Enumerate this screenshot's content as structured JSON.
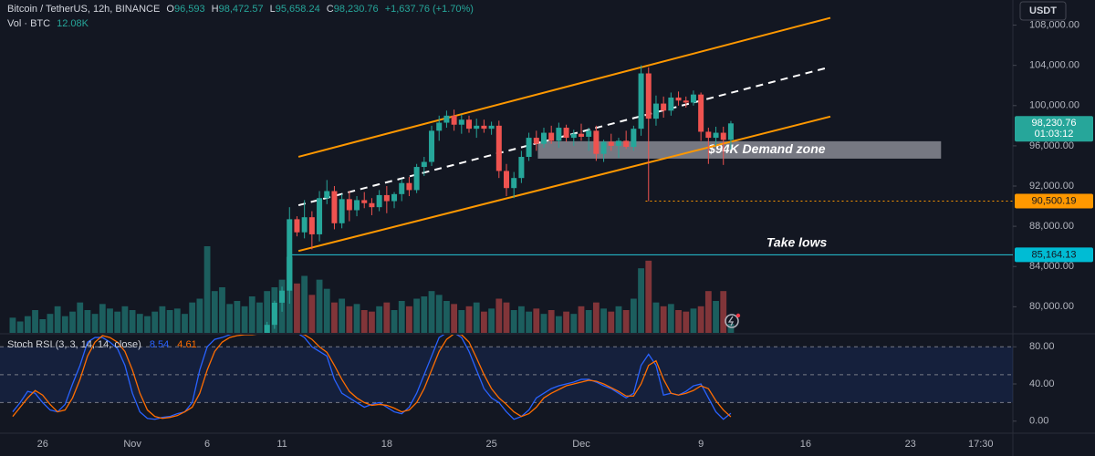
{
  "header": {
    "symbol": "Bitcoin / TetherUS, 12h, BINANCE",
    "o_label": "O",
    "open": "96,593",
    "h_label": "H",
    "high": "98,472.57",
    "l_label": "L",
    "low": "95,658.24",
    "c_label": "C",
    "close": "98,230.76",
    "change": "+1,637.76 (+1.70%)",
    "volume_label": "Vol · BTC",
    "volume_value": "12.08K",
    "currency": "USDT"
  },
  "chart_data": [
    {
      "type": "candlestick",
      "up_color": "#26a69a",
      "down_color": "#ef5350",
      "xlim": [
        -1.7,
        133.7
      ],
      "xticks": [
        {
          "value": 4,
          "label": "26"
        },
        {
          "value": 16,
          "label": "Nov"
        },
        {
          "value": 26,
          "label": "6"
        },
        {
          "value": 36,
          "label": "11"
        },
        {
          "value": 50,
          "label": "18"
        },
        {
          "value": 64,
          "label": "25"
        },
        {
          "value": 76,
          "label": "Dec"
        },
        {
          "value": 92,
          "label": "9"
        },
        {
          "value": 106,
          "label": "16"
        },
        {
          "value": 120,
          "label": "23"
        },
        {
          "value": 129.4,
          "label": "17:30"
        }
      ],
      "ylim": [
        77400,
        110500
      ],
      "yticks": [
        {
          "value": 80000,
          "label": "80,000.00"
        },
        {
          "value": 84000,
          "label": "84,000.00"
        },
        {
          "value": 88000,
          "label": "88,000.00"
        },
        {
          "value": 92000,
          "label": "92,000.00"
        },
        {
          "value": 96000,
          "label": "96,000.00"
        },
        {
          "value": 100000,
          "label": "100,000.00"
        },
        {
          "value": 104000,
          "label": "104,000.00"
        },
        {
          "value": 108000,
          "label": "108,000.00"
        }
      ],
      "open": [
        null,
        null,
        null,
        null,
        null,
        null,
        null,
        null,
        null,
        null,
        null,
        null,
        null,
        null,
        null,
        null,
        null,
        null,
        null,
        null,
        null,
        null,
        null,
        null,
        null,
        null,
        null,
        null,
        null,
        null,
        null,
        null,
        null,
        null,
        77000,
        78200,
        80400,
        81600,
        88700,
        87400,
        88900,
        87200,
        90800,
        91500,
        88300,
        90700,
        89600,
        90600,
        90300,
        89900,
        91100,
        90500,
        91200,
        92300,
        91600,
        93900,
        94400,
        97500,
        98300,
        99000,
        98100,
        98600,
        97700,
        98000,
        97700,
        98000,
        93500,
        91800,
        92800,
        94900,
        96800,
        96200,
        97300,
        96500,
        97800,
        96800,
        97200,
        96900,
        97500,
        95200,
        96400,
        96000,
        96500,
        95900,
        97700,
        103200,
        98700,
        100200,
        99500,
        100800,
        100500,
        100300,
        101100,
        97400,
        96800,
        97300,
        96593
      ],
      "high": [
        null,
        null,
        null,
        null,
        null,
        null,
        null,
        null,
        null,
        null,
        null,
        null,
        null,
        null,
        null,
        null,
        null,
        null,
        null,
        null,
        null,
        null,
        null,
        null,
        null,
        null,
        null,
        null,
        null,
        null,
        null,
        null,
        null,
        null,
        78500,
        80600,
        82000,
        89900,
        89000,
        90600,
        89500,
        91500,
        92600,
        92000,
        91200,
        91500,
        91000,
        91400,
        90800,
        91600,
        92000,
        91400,
        92700,
        92900,
        94200,
        94900,
        98000,
        99000,
        99500,
        99600,
        99100,
        99000,
        98700,
        98600,
        98400,
        98500,
        94200,
        93400,
        95500,
        97300,
        97500,
        97800,
        98000,
        98300,
        98100,
        97600,
        98200,
        97800,
        98000,
        96600,
        97200,
        96800,
        97500,
        98000,
        104000,
        103800,
        101000,
        100900,
        101300,
        101400,
        100900,
        101500,
        101300,
        97800,
        97900,
        97900,
        98472.57
      ],
      "low": [
        null,
        null,
        null,
        null,
        null,
        null,
        null,
        null,
        null,
        null,
        null,
        null,
        null,
        null,
        null,
        null,
        null,
        null,
        null,
        null,
        null,
        null,
        null,
        null,
        null,
        null,
        null,
        null,
        null,
        null,
        null,
        null,
        null,
        null,
        76500,
        77800,
        79500,
        80300,
        87000,
        86800,
        85700,
        86500,
        90200,
        87700,
        87800,
        88500,
        89000,
        89800,
        89100,
        89500,
        89300,
        89800,
        90500,
        91000,
        91300,
        93000,
        94000,
        96500,
        97800,
        97500,
        97200,
        97300,
        96800,
        97300,
        97100,
        92800,
        91000,
        90800,
        92300,
        94500,
        95500,
        95800,
        96200,
        95800,
        96400,
        96000,
        96500,
        95500,
        94500,
        94400,
        95500,
        94800,
        95700,
        95500,
        97000,
        90500,
        98000,
        98800,
        99000,
        100000,
        99800,
        100000,
        96500,
        94200,
        96000,
        94100,
        95658.24
      ],
      "close": [
        null,
        null,
        null,
        null,
        null,
        null,
        null,
        null,
        null,
        null,
        null,
        null,
        null,
        null,
        null,
        null,
        null,
        null,
        null,
        null,
        null,
        null,
        null,
        null,
        null,
        null,
        null,
        null,
        null,
        null,
        null,
        null,
        null,
        null,
        78200,
        80400,
        81600,
        88700,
        87400,
        88900,
        87200,
        90800,
        91500,
        88300,
        90700,
        89600,
        90600,
        90300,
        89900,
        91100,
        90500,
        91200,
        92300,
        91600,
        93900,
        94400,
        97500,
        98300,
        99000,
        98100,
        98600,
        97700,
        98000,
        97700,
        98000,
        93500,
        91800,
        92800,
        94900,
        96800,
        96200,
        97300,
        96500,
        97800,
        96800,
        97200,
        96900,
        97500,
        95200,
        96400,
        96000,
        96500,
        95900,
        97700,
        103200,
        98700,
        100200,
        99500,
        100800,
        100500,
        100300,
        101100,
        97400,
        96800,
        97300,
        96593,
        98230.76
      ],
      "volume": {
        "ylim": [
          0,
          120
        ],
        "color": "#26a69a",
        "values": [
          20,
          15,
          22,
          30,
          18,
          25,
          35,
          22,
          28,
          40,
          30,
          25,
          38,
          32,
          28,
          35,
          30,
          25,
          22,
          28,
          35,
          30,
          32,
          25,
          40,
          45,
          114,
          55,
          60,
          38,
          42,
          35,
          48,
          40,
          55,
          60,
          70,
          100,
          65,
          75,
          50,
          70,
          58,
          40,
          45,
          35,
          38,
          30,
          28,
          35,
          40,
          30,
          42,
          35,
          45,
          48,
          55,
          50,
          42,
          38,
          30,
          35,
          40,
          28,
          32,
          45,
          40,
          30,
          35,
          28,
          32,
          25,
          30,
          22,
          28,
          25,
          35,
          30,
          40,
          32,
          28,
          35,
          30,
          45,
          85,
          95,
          40,
          35,
          38,
          30,
          28,
          32,
          35,
          55,
          42,
          55,
          12.08
        ]
      },
      "lines": [
        {
          "x": [
            38.2,
            109.3
          ],
          "y": [
            94909,
            108727
          ],
          "color": "#ff9800",
          "style": "solid"
        },
        {
          "x": [
            38.2,
            109.3
          ],
          "y": [
            85545,
            98909
          ],
          "color": "#ff9800",
          "style": "solid"
        },
        {
          "x": [
            38.2,
            108.7
          ],
          "y": [
            90091,
            103727
          ],
          "color": "#ffffff",
          "style": "dashed"
        },
        {
          "x": [
            37.1,
            133.7
          ],
          "y": [
            85164.13,
            85164.13
          ],
          "color": "#26c6da",
          "style": "thin"
        },
        {
          "x": [
            84.6,
            133.7
          ],
          "y": [
            90500.19,
            90500.19
          ],
          "color": "#ff9800",
          "style": "dotted"
        }
      ],
      "zone": {
        "x": [
          70.2,
          124.1
        ],
        "y": [
          94727,
          96455
        ],
        "label": "$94K Demand zone"
      },
      "notes": [
        {
          "text": "Take lows",
          "x": 104.8,
          "y": 86300
        }
      ],
      "price_badges": [
        {
          "value": 98230.76,
          "label": "98,230.76",
          "sub": "01:03:12",
          "color": "#26a69a"
        },
        {
          "value": 90500.19,
          "label": "90,500.19",
          "color": "#ff9800"
        },
        {
          "value": 85164.13,
          "label": "85,164.13",
          "color": "#00bcd4"
        }
      ]
    },
    {
      "type": "line",
      "title": "Stoch RSI (3, 3, 14, 14, close)",
      "xlim": [
        -1.7,
        133.7
      ],
      "ylim": [
        -12,
        93
      ],
      "yticks": [
        {
          "value": 0,
          "label": "0.00"
        },
        {
          "value": 40,
          "label": "40.00"
        },
        {
          "value": 80,
          "label": "80.00"
        }
      ],
      "band": [
        20,
        80
      ],
      "levels": [
        80,
        50,
        20
      ],
      "series": [
        {
          "color": "#2962ff",
          "last_label": "8.54",
          "values": [
            10,
            20,
            32,
            30,
            20,
            12,
            10,
            18,
            40,
            60,
            85,
            90,
            90,
            85,
            78,
            60,
            30,
            10,
            3,
            2,
            4,
            5,
            8,
            10,
            20,
            55,
            80,
            88,
            90,
            93,
            95,
            95,
            95,
            95,
            95,
            95,
            95,
            95,
            95,
            90,
            80,
            75,
            70,
            45,
            30,
            25,
            20,
            15,
            18,
            20,
            15,
            10,
            8,
            15,
            30,
            50,
            70,
            90,
            95,
            95,
            90,
            75,
            55,
            35,
            25,
            20,
            10,
            2,
            5,
            12,
            25,
            30,
            35,
            38,
            40,
            42,
            45,
            45,
            42,
            38,
            35,
            30,
            25,
            30,
            60,
            72,
            60,
            28,
            30,
            28,
            32,
            38,
            40,
            25,
            10,
            2,
            8.54
          ]
        },
        {
          "color": "#ff6d00",
          "last_label": "4.61",
          "values": [
            5,
            15,
            25,
            33,
            28,
            18,
            10,
            12,
            25,
            45,
            70,
            85,
            92,
            90,
            85,
            75,
            55,
            30,
            12,
            5,
            3,
            4,
            6,
            10,
            15,
            30,
            55,
            75,
            85,
            90,
            92,
            93,
            93,
            94,
            94,
            95,
            95,
            95,
            95,
            93,
            88,
            80,
            74,
            60,
            45,
            32,
            25,
            20,
            17,
            18,
            17,
            14,
            10,
            12,
            20,
            35,
            55,
            75,
            88,
            94,
            93,
            85,
            68,
            50,
            35,
            25,
            18,
            10,
            5,
            8,
            15,
            25,
            30,
            34,
            38,
            40,
            42,
            44,
            43,
            40,
            36,
            32,
            27,
            27,
            40,
            60,
            65,
            45,
            30,
            28,
            30,
            33,
            38,
            35,
            22,
            12,
            4.61
          ]
        }
      ]
    }
  ]
}
